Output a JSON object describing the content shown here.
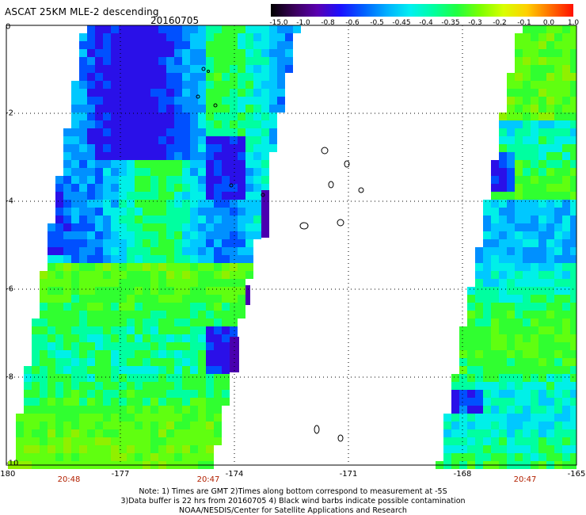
{
  "header": {
    "title": "ASCAT 25KM MLE-2 descending",
    "date": "20160705"
  },
  "colorbar": {
    "ticks": [
      "-15.0",
      "-1.0",
      "-0.8",
      "-0.6",
      "-0.5",
      "-0.45",
      "-0.4",
      "-0.35",
      "-0.3",
      "-0.2",
      "-0.1",
      "0.0",
      "1.0"
    ],
    "colors": [
      "#000000",
      "#3a005a",
      "#5a00b0",
      "#1a10ff",
      "#0060ff",
      "#00b0ff",
      "#00f0f0",
      "#00ffa0",
      "#20ff40",
      "#7cff00",
      "#d8ff00",
      "#ffd000",
      "#ff7000",
      "#ff1000"
    ]
  },
  "map": {
    "lon_min": -180,
    "lon_max": -165,
    "lat_min": -10,
    "lat_max": 0,
    "x_ticks": [
      "-180",
      "-177",
      "-174",
      "-171",
      "-168",
      "-165"
    ],
    "y_ticks": [
      "0",
      "-2",
      "-4",
      "-6",
      "-8",
      "-10"
    ],
    "pass_times": [
      "20:48",
      "20:47",
      "20:47"
    ]
  },
  "notes": {
    "line1": "Note: 1) Times are GMT 2)Times along bottom correspond to measurement at -5S",
    "line2": "3)Data buffer is 22 hrs from 20160705 4) Black wind barbs indicate possible contamination",
    "line3": "NOAA/NESDIS/Center for Satellite Applications and Research"
  }
}
